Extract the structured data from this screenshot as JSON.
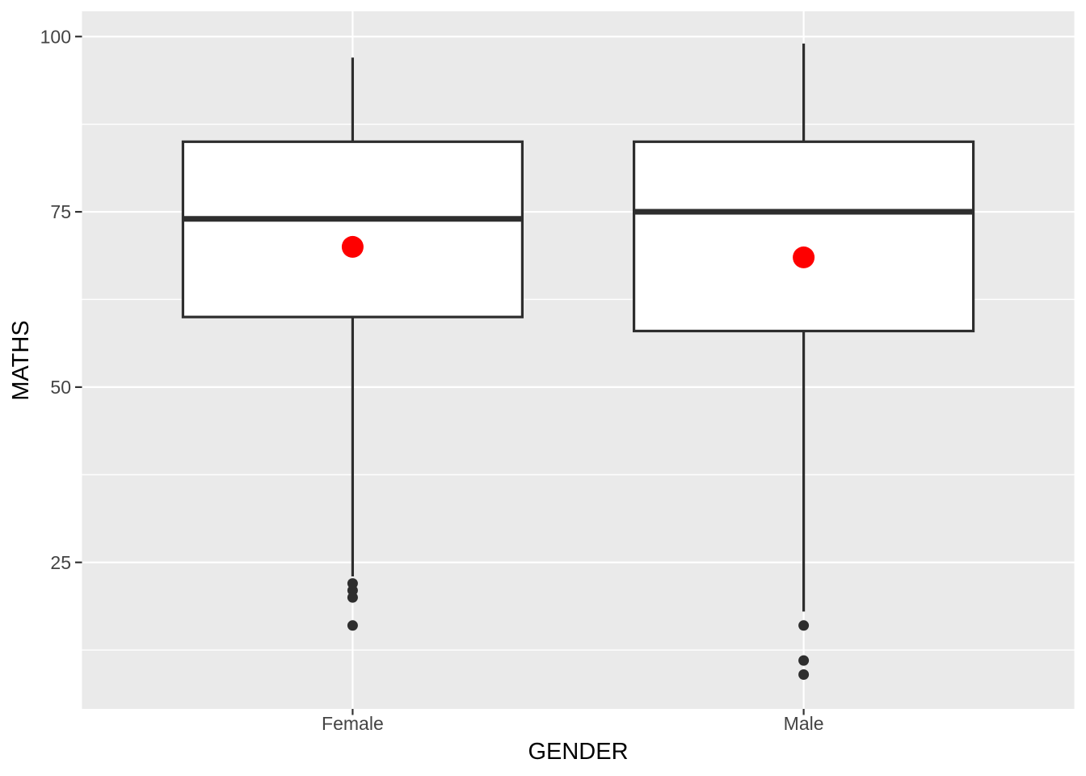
{
  "figure": {
    "bg": "#FFFFFF",
    "panel_bg": "#EAEAEA",
    "grid_color": "#FFFFFF",
    "box_stroke": "#2E2E2E",
    "box_fill": "#FFFFFF",
    "mean_color": "#FE0000",
    "tick_text_color": "#444444",
    "title_text_color": "#000000",
    "tick_mark_color": "#333333"
  },
  "chart_data": {
    "type": "boxplot",
    "title": "",
    "xlabel": "GENDER",
    "ylabel": "MATHS",
    "categories": [
      "Female",
      "Male"
    ],
    "y_ticks": [
      25,
      50,
      75,
      100
    ],
    "y_minor_gridlines": [
      12.5,
      37.5,
      62.5,
      87.5
    ],
    "ylim": [
      4.1,
      103.6
    ],
    "grid": true,
    "legend": false,
    "series": [
      {
        "category": "Female",
        "whisker_low": 23,
        "q1": 60,
        "median": 74,
        "q3": 85,
        "whisker_high": 97,
        "mean": 70,
        "outliers": [
          22,
          21,
          20,
          16
        ]
      },
      {
        "category": "Male",
        "whisker_low": 18,
        "q1": 58,
        "median": 75,
        "q3": 85,
        "whisker_high": 99,
        "mean": 68.5,
        "outliers": [
          16,
          11,
          9
        ]
      }
    ]
  }
}
